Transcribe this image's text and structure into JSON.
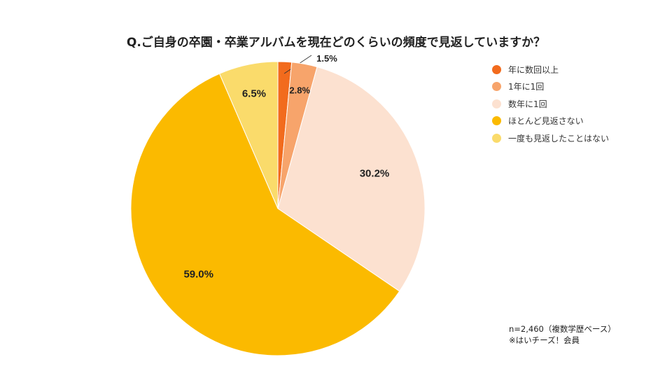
{
  "chart_data": {
    "type": "pie",
    "title": "Q.ご自身の卒園・卒業アルバムを現在どのくらいの頻度で見返していますか？",
    "categories": [
      "年に数回以上",
      "1年に1回",
      "数年に1回",
      "ほとんど見返さない",
      "一度も見返したことはない"
    ],
    "values": [
      1.5,
      2.8,
      30.2,
      59.0,
      6.5
    ],
    "labels": [
      "1.5%",
      "2.8%",
      "30.2%",
      "59.0%",
      "6.5%"
    ],
    "colors": [
      "#F26B1D",
      "#F7A46B",
      "#FCE1D0",
      "#FBBA00",
      "#FADB6B"
    ],
    "legend_position": "right"
  },
  "notes": [
    "n=2,460（複数学歴ベース）",
    "※はいチーズ！会員"
  ]
}
